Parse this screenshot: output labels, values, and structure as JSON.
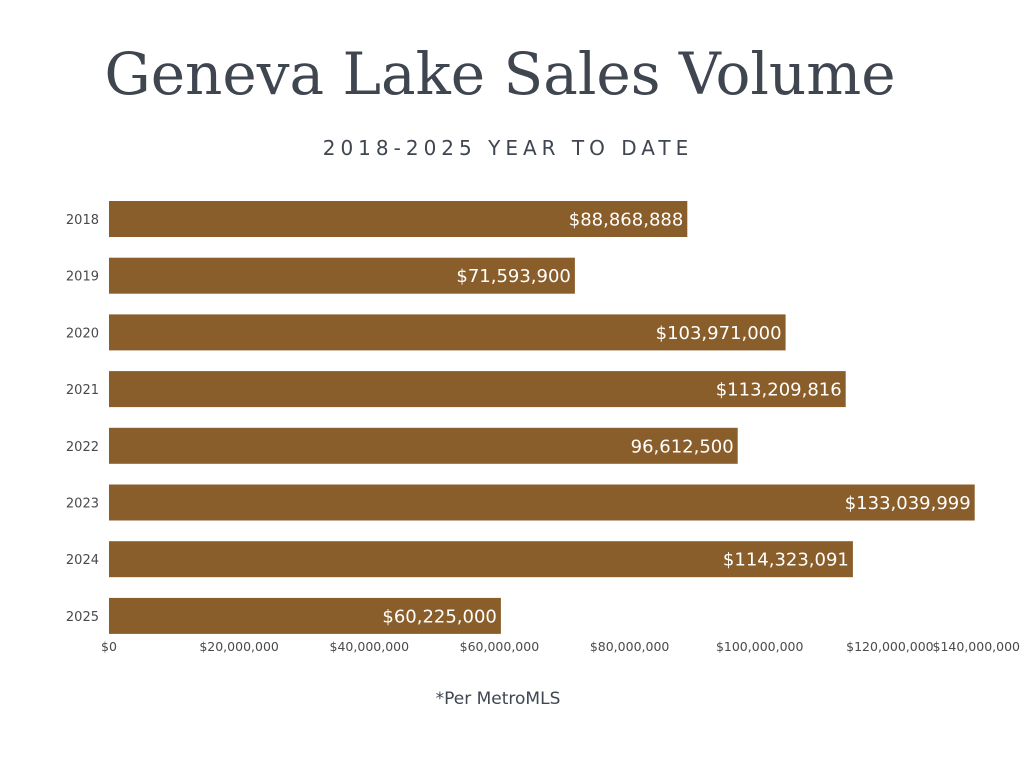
{
  "chart_data": {
    "type": "bar",
    "orientation": "horizontal",
    "title": "Geneva Lake Sales Volume",
    "subtitle": "2018-2025 YEAR TO DATE",
    "footnote": "*Per MetroMLS",
    "categories": [
      "2018",
      "2019",
      "2020",
      "2021",
      "2022",
      "2023",
      "2024",
      "2025"
    ],
    "values": [
      88868888,
      71593900,
      103971000,
      113209816,
      96612500,
      133039999,
      114323091,
      60225000
    ],
    "data_labels": [
      "$88,868,888",
      "$71,593,900",
      "$103,971,000",
      "$113,209,816",
      "96,612,500",
      "$133,039,999",
      "$114,323,091",
      "$60,225,000"
    ],
    "xticks": [
      0,
      20000000,
      40000000,
      60000000,
      80000000,
      100000000,
      120000000,
      140000000
    ],
    "xtick_labels": [
      "$0",
      "$20,000,000",
      "$40,000,000",
      "$60,000,000",
      "$80,000,000",
      "$100,000,000",
      "$120,000,000",
      "$140,000,000"
    ],
    "xlim": [
      0,
      140000000
    ],
    "xlabel": "",
    "ylabel": "",
    "grid": false,
    "legend": "none",
    "bar_color": "#8a5e2b",
    "label_color": "#ffffff",
    "text_color": "#3f4650"
  }
}
